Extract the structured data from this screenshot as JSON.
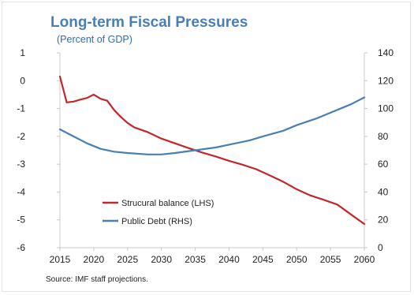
{
  "title": "Long-term Fiscal Pressures",
  "subtitle": "(Percent of GDP)",
  "source": "Source: IMF staff projections.",
  "colors": {
    "structural": "#c1272d",
    "debt": "#4a7fb5",
    "axis": "#c8c8c8"
  },
  "chart_data": {
    "type": "line",
    "x_ticks": [
      "2015",
      "2020",
      "2025",
      "2030",
      "2035",
      "2040",
      "2045",
      "2050",
      "2055",
      "2060"
    ],
    "ylim_left": [
      -6,
      1
    ],
    "ylim_right": [
      0,
      140
    ],
    "y_left_ticks": [
      "1",
      "0",
      "-1",
      "-2",
      "-3",
      "-4",
      "-5",
      "-6"
    ],
    "y_right_ticks": [
      "140",
      "120",
      "100",
      "80",
      "60",
      "40",
      "20",
      "0"
    ],
    "legend": [
      "Strucural balance (LHS)",
      "Public Debt (RHS)"
    ],
    "series": [
      {
        "name": "Strucural balance (LHS)",
        "axis": "left",
        "x": [
          2015,
          2016,
          2017,
          2018,
          2019,
          2020,
          2021,
          2022,
          2023,
          2024,
          2025,
          2026,
          2028,
          2030,
          2032,
          2034,
          2036,
          2038,
          2040,
          2042,
          2044,
          2046,
          2048,
          2050,
          2052,
          2054,
          2056,
          2058,
          2060
        ],
        "values": [
          0.15,
          -0.78,
          -0.75,
          -0.68,
          -0.62,
          -0.5,
          -0.65,
          -0.72,
          -1.05,
          -1.3,
          -1.52,
          -1.68,
          -1.85,
          -2.08,
          -2.25,
          -2.42,
          -2.58,
          -2.72,
          -2.88,
          -3.02,
          -3.18,
          -3.4,
          -3.63,
          -3.9,
          -4.12,
          -4.28,
          -4.45,
          -4.8,
          -5.15
        ]
      },
      {
        "name": "Public Debt (RHS)",
        "axis": "right",
        "x": [
          2015,
          2017,
          2019,
          2021,
          2023,
          2025,
          2028,
          2030,
          2032,
          2035,
          2038,
          2040,
          2043,
          2045,
          2048,
          2050,
          2053,
          2055,
          2058,
          2060
        ],
        "values": [
          85,
          80,
          75,
          71,
          69,
          68,
          67,
          67,
          68,
          70,
          72,
          74,
          77,
          80,
          84,
          88,
          93,
          97,
          103,
          108
        ]
      }
    ]
  }
}
